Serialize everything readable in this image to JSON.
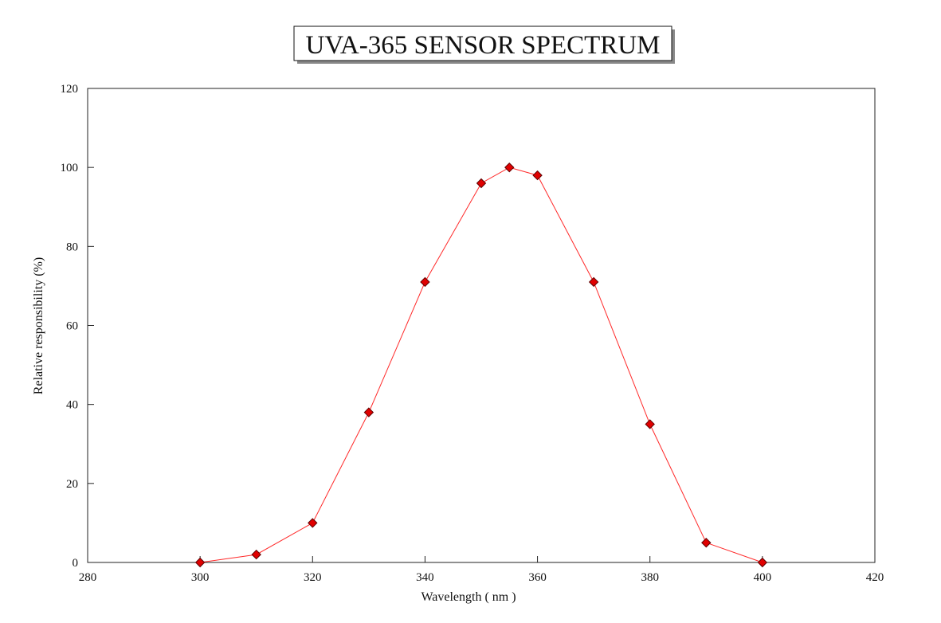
{
  "chart_data": {
    "type": "line",
    "title": "UVA-365 SENSOR SPECTRUM",
    "xlabel": "Wavelength ( nm )",
    "ylabel": "Relative responsibility (%)",
    "xlim": [
      280,
      420
    ],
    "ylim": [
      0,
      120
    ],
    "xticks": [
      280,
      300,
      320,
      340,
      360,
      380,
      400,
      420
    ],
    "yticks": [
      0,
      20,
      40,
      60,
      80,
      100,
      120
    ],
    "grid": false,
    "series": [
      {
        "x": [
          300,
          310,
          320,
          330,
          340,
          350,
          355,
          360,
          370,
          380,
          390,
          400
        ],
        "y": [
          0,
          2,
          10,
          38,
          71,
          96,
          100,
          98,
          71,
          35,
          5,
          0
        ],
        "line_color": "#ff2a2a",
        "marker": "diamond",
        "marker_color": "#e00000"
      }
    ]
  }
}
